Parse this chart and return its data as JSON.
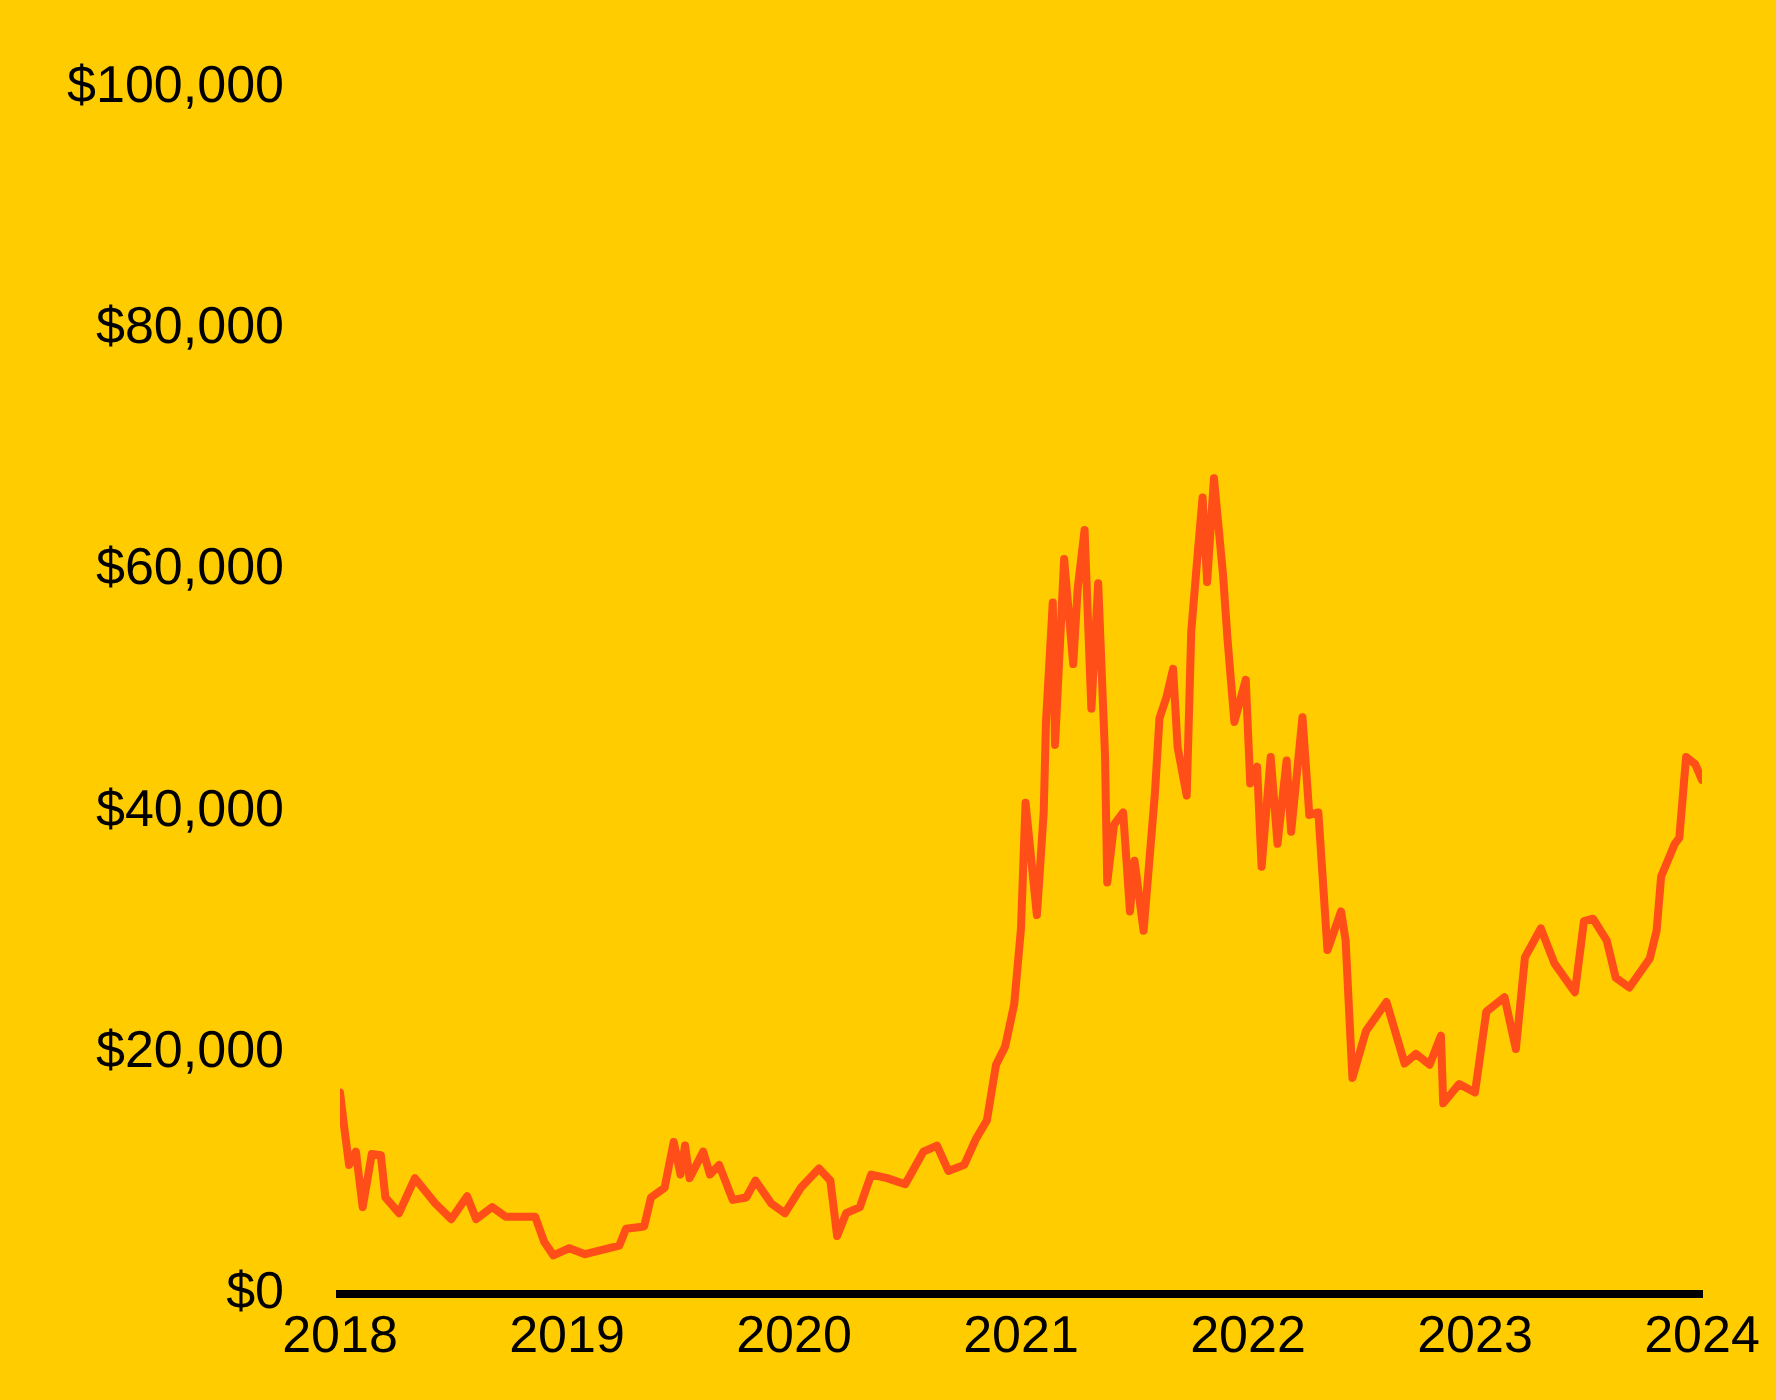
{
  "chart_data": {
    "type": "line",
    "x": [
      2018.0,
      2018.02,
      2018.04,
      2018.07,
      2018.1,
      2018.14,
      2018.18,
      2018.2,
      2018.26,
      2018.33,
      2018.42,
      2018.49,
      2018.56,
      2018.6,
      2018.67,
      2018.73,
      2018.86,
      2018.9,
      2018.94,
      2019.01,
      2019.08,
      2019.23,
      2019.26,
      2019.34,
      2019.37,
      2019.43,
      2019.47,
      2019.5,
      2019.52,
      2019.54,
      2019.6,
      2019.63,
      2019.67,
      2019.73,
      2019.79,
      2019.83,
      2019.9,
      2019.96,
      2020.03,
      2020.11,
      2020.16,
      2020.19,
      2020.23,
      2020.29,
      2020.34,
      2020.41,
      2020.49,
      2020.57,
      2020.63,
      2020.68,
      2020.75,
      2020.8,
      2020.85,
      2020.89,
      2020.93,
      2020.97,
      2021.0,
      2021.02,
      2021.07,
      2021.1,
      2021.11,
      2021.14,
      2021.15,
      2021.19,
      2021.23,
      2021.25,
      2021.28,
      2021.31,
      2021.34,
      2021.37,
      2021.38,
      2021.41,
      2021.45,
      2021.48,
      2021.5,
      2021.54,
      2021.59,
      2021.61,
      2021.64,
      2021.67,
      2021.69,
      2021.73,
      2021.75,
      2021.78,
      2021.8,
      2021.82,
      2021.85,
      2021.89,
      2021.91,
      2021.94,
      2021.99,
      2022.01,
      2022.04,
      2022.06,
      2022.1,
      2022.13,
      2022.17,
      2022.19,
      2022.24,
      2022.27,
      2022.31,
      2022.35,
      2022.41,
      2022.43,
      2022.46,
      2022.52,
      2022.61,
      2022.69,
      2022.74,
      2022.8,
      2022.85,
      2022.86,
      2022.93,
      2023.0,
      2023.05,
      2023.13,
      2023.18,
      2023.22,
      2023.29,
      2023.35,
      2023.44,
      2023.48,
      2023.52,
      2023.58,
      2023.62,
      2023.68,
      2023.77,
      2023.8,
      2023.82,
      2023.88,
      2023.9,
      2023.93,
      2023.97,
      2024.0
    ],
    "series": [
      {
        "color": "#ff4e17",
        "values": [
          16700,
          13600,
          10700,
          11800,
          7200,
          11600,
          11500,
          8000,
          6700,
          9600,
          7500,
          6200,
          8100,
          6200,
          7200,
          6400,
          6400,
          4300,
          3200,
          3800,
          3300,
          4000,
          5400,
          5600,
          8000,
          8800,
          12600,
          9900,
          12300,
          9600,
          11800,
          9900,
          10700,
          7800,
          8000,
          9400,
          7500,
          6700,
          8800,
          10400,
          9400,
          4800,
          6700,
          7200,
          9900,
          9600,
          9100,
          11800,
          12300,
          10200,
          10700,
          12800,
          14400,
          19000,
          20500,
          24000,
          30300,
          40700,
          31400,
          39900,
          47400,
          57300,
          45500,
          60900,
          52200,
          58500,
          63300,
          48500,
          58900,
          44700,
          34100,
          38900,
          39900,
          31700,
          35900,
          30100,
          41500,
          47700,
          49400,
          51800,
          45300,
          41300,
          54900,
          61700,
          66000,
          59000,
          67600,
          59600,
          54200,
          47400,
          50900,
          42300,
          43700,
          35400,
          44500,
          37300,
          44200,
          38300,
          47800,
          39700,
          39900,
          28500,
          31700,
          29300,
          17900,
          21800,
          24200,
          19100,
          19900,
          19000,
          21400,
          15800,
          17400,
          16700,
          23400,
          24600,
          20300,
          27900,
          30300,
          27400,
          25000,
          30900,
          31100,
          29300,
          26200,
          25400,
          27800,
          30100,
          34600,
          37300,
          37800,
          44500,
          43900,
          42600
        ]
      }
    ],
    "xlim": [
      2018,
      2024
    ],
    "xticks": [
      2018,
      2019,
      2020,
      2021,
      2022,
      2023,
      2024
    ],
    "ylim": [
      0,
      100000
    ],
    "yticks": [
      {
        "value": 0,
        "label": "$0"
      },
      {
        "value": 20000,
        "label": "$20,000"
      },
      {
        "value": 40000,
        "label": "$40,000"
      },
      {
        "value": 60000,
        "label": "$60,000"
      },
      {
        "value": 80000,
        "label": "$80,000"
      },
      {
        "value": 100000,
        "label": "$100,000"
      }
    ],
    "grid": false,
    "legend": false,
    "marker": "none",
    "line_style": "solid"
  }
}
